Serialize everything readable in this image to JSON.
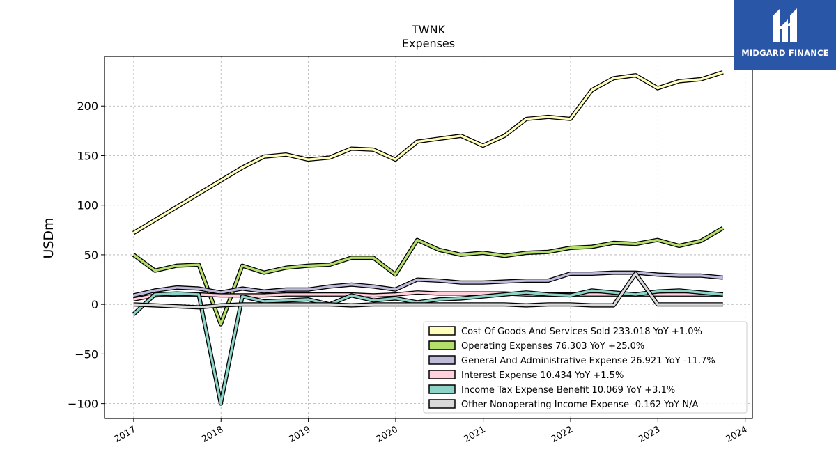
{
  "brand": {
    "name": "MIDGARD FINANCE",
    "bg_color": "#2a56a8"
  },
  "chart_data": {
    "type": "line",
    "title": "TWNK",
    "subtitle": "Expenses",
    "ylabel": "USDm",
    "xlabel": "",
    "ylim": [
      -115,
      250
    ],
    "yticks": [
      -100,
      -50,
      0,
      50,
      100,
      150,
      200
    ],
    "xticks": [
      "2017",
      "2018",
      "2019",
      "2020",
      "2021",
      "2022",
      "2023",
      "2024"
    ],
    "grid": true,
    "legend_position": "lower-right",
    "series": [
      {
        "name": "Cost Of Goods And Services Sold",
        "legend": "Cost Of Goods And Services Sold  233.018 YoY +1.0%",
        "color": "#ffffbb",
        "points": [
          [
            "2016-12-31",
            72
          ],
          [
            "2018-01-01",
            125
          ],
          [
            "2018-03-31",
            138
          ],
          [
            "2018-06-30",
            149
          ],
          [
            "2018-09-30",
            151
          ],
          [
            "2018-12-31",
            146
          ],
          [
            "2019-03-31",
            148
          ],
          [
            "2019-06-30",
            157
          ],
          [
            "2019-09-30",
            156
          ],
          [
            "2019-12-31",
            146
          ],
          [
            "2020-03-31",
            164
          ],
          [
            "2020-06-30",
            167
          ],
          [
            "2020-09-30",
            170
          ],
          [
            "2020-12-31",
            160
          ],
          [
            "2021-03-31",
            170
          ],
          [
            "2021-06-30",
            187
          ],
          [
            "2021-09-30",
            189
          ],
          [
            "2021-12-31",
            187
          ],
          [
            "2022-03-31",
            216
          ],
          [
            "2022-06-30",
            228
          ],
          [
            "2022-09-30",
            231
          ],
          [
            "2022-12-31",
            218
          ],
          [
            "2023-03-31",
            225
          ],
          [
            "2023-06-30",
            227
          ],
          [
            "2023-09-30",
            234
          ]
        ]
      },
      {
        "name": "Operating Expenses",
        "legend": "Operating Expenses  76.303 YoY +25.0%",
        "color": "#b3de69",
        "points": [
          [
            "2016-12-31",
            50
          ],
          [
            "2017-03-31",
            34
          ],
          [
            "2017-06-30",
            39
          ],
          [
            "2017-09-30",
            40
          ],
          [
            "2017-12-31",
            -20
          ],
          [
            "2018-03-31",
            39
          ],
          [
            "2018-06-30",
            32
          ],
          [
            "2018-09-30",
            37
          ],
          [
            "2018-12-31",
            39
          ],
          [
            "2019-03-31",
            40
          ],
          [
            "2019-06-30",
            47
          ],
          [
            "2019-09-30",
            47
          ],
          [
            "2019-12-31",
            30
          ],
          [
            "2020-03-31",
            65
          ],
          [
            "2020-06-30",
            55
          ],
          [
            "2020-09-30",
            50
          ],
          [
            "2020-12-31",
            52
          ],
          [
            "2021-03-31",
            49
          ],
          [
            "2021-06-30",
            52
          ],
          [
            "2021-09-30",
            53
          ],
          [
            "2021-12-31",
            57
          ],
          [
            "2022-03-31",
            58
          ],
          [
            "2022-06-30",
            62
          ],
          [
            "2022-09-30",
            61
          ],
          [
            "2022-12-31",
            65
          ],
          [
            "2023-03-31",
            59
          ],
          [
            "2023-06-30",
            64
          ],
          [
            "2023-09-30",
            77
          ]
        ]
      },
      {
        "name": "General And Administrative Expense",
        "legend": "General And Administrative Expense  26.921 YoY -11.7%",
        "color": "#bebada",
        "points": [
          [
            "2016-12-31",
            9
          ],
          [
            "2017-03-31",
            14
          ],
          [
            "2017-06-30",
            17
          ],
          [
            "2017-09-30",
            16
          ],
          [
            "2017-12-31",
            12
          ],
          [
            "2018-03-31",
            16
          ],
          [
            "2018-06-30",
            13
          ],
          [
            "2018-09-30",
            15
          ],
          [
            "2018-12-31",
            15
          ],
          [
            "2019-03-31",
            18
          ],
          [
            "2019-06-30",
            20
          ],
          [
            "2019-09-30",
            18
          ],
          [
            "2019-12-31",
            15
          ],
          [
            "2020-03-31",
            25
          ],
          [
            "2020-06-30",
            24
          ],
          [
            "2020-09-30",
            22
          ],
          [
            "2020-12-31",
            22
          ],
          [
            "2021-03-31",
            23
          ],
          [
            "2021-06-30",
            24
          ],
          [
            "2021-09-30",
            24
          ],
          [
            "2021-12-31",
            31
          ],
          [
            "2022-03-31",
            31
          ],
          [
            "2022-06-30",
            32
          ],
          [
            "2022-09-30",
            32
          ],
          [
            "2022-12-31",
            30
          ],
          [
            "2023-03-31",
            29
          ],
          [
            "2023-06-30",
            29
          ],
          [
            "2023-09-30",
            27
          ]
        ]
      },
      {
        "name": "Interest Expense",
        "legend": "Interest Expense  10.434 YoY +1.5%",
        "color": "#ffd1dc",
        "points": [
          [
            "2016-12-31",
            5
          ],
          [
            "2017-03-31",
            9
          ],
          [
            "2017-06-30",
            10
          ],
          [
            "2017-09-30",
            10
          ],
          [
            "2017-12-31",
            9
          ],
          [
            "2018-03-31",
            9
          ],
          [
            "2018-06-30",
            9
          ],
          [
            "2018-09-30",
            10
          ],
          [
            "2018-12-31",
            10
          ],
          [
            "2019-03-31",
            10
          ],
          [
            "2019-06-30",
            10
          ],
          [
            "2019-09-30",
            9
          ],
          [
            "2019-12-31",
            10
          ],
          [
            "2020-03-31",
            12
          ],
          [
            "2020-06-30",
            11
          ],
          [
            "2020-09-30",
            11
          ],
          [
            "2020-12-31",
            11
          ],
          [
            "2021-03-31",
            11
          ],
          [
            "2021-06-30",
            10
          ],
          [
            "2021-09-30",
            10
          ],
          [
            "2021-12-31",
            10
          ],
          [
            "2022-03-31",
            10
          ],
          [
            "2022-06-30",
            10
          ],
          [
            "2022-09-30",
            10
          ],
          [
            "2022-12-31",
            10
          ],
          [
            "2023-03-31",
            10
          ],
          [
            "2023-06-30",
            10
          ],
          [
            "2023-09-30",
            10
          ]
        ]
      },
      {
        "name": "Income Tax Expense Benefit",
        "legend": "Income Tax Expense Benefit  10.069 YoY +3.1%",
        "color": "#8dd3c7",
        "points": [
          [
            "2016-12-31",
            -10
          ],
          [
            "2017-03-31",
            10
          ],
          [
            "2017-06-30",
            11
          ],
          [
            "2017-09-30",
            10
          ],
          [
            "2017-12-31",
            -100
          ],
          [
            "2018-03-31",
            8
          ],
          [
            "2018-06-30",
            3
          ],
          [
            "2018-09-30",
            4
          ],
          [
            "2018-12-31",
            5
          ],
          [
            "2019-03-31",
            0
          ],
          [
            "2019-06-30",
            9
          ],
          [
            "2019-09-30",
            4
          ],
          [
            "2019-12-31",
            6
          ],
          [
            "2020-03-31",
            2
          ],
          [
            "2020-06-30",
            5
          ],
          [
            "2020-09-30",
            6
          ],
          [
            "2020-12-31",
            8
          ],
          [
            "2021-03-31",
            10
          ],
          [
            "2021-06-30",
            12
          ],
          [
            "2021-09-30",
            10
          ],
          [
            "2021-12-31",
            9
          ],
          [
            "2022-03-31",
            14
          ],
          [
            "2022-06-30",
            12
          ],
          [
            "2022-09-30",
            10
          ],
          [
            "2022-12-31",
            13
          ],
          [
            "2023-03-31",
            14
          ],
          [
            "2023-06-30",
            12
          ],
          [
            "2023-09-30",
            10
          ]
        ]
      },
      {
        "name": "Other Nonoperating Income Expense",
        "legend": "Other Nonoperating Income Expense  -0.162 YoY N/A",
        "color": "#d9d9d9",
        "points": [
          [
            "2016-12-31",
            0
          ],
          [
            "2017-03-31",
            -1
          ],
          [
            "2017-06-30",
            -2
          ],
          [
            "2017-09-30",
            -3
          ],
          [
            "2017-12-31",
            -1
          ],
          [
            "2018-03-31",
            0
          ],
          [
            "2018-06-30",
            0
          ],
          [
            "2018-09-30",
            0
          ],
          [
            "2018-12-31",
            0
          ],
          [
            "2019-03-31",
            0
          ],
          [
            "2019-06-30",
            -1
          ],
          [
            "2019-09-30",
            0
          ],
          [
            "2019-12-31",
            0
          ],
          [
            "2020-03-31",
            0
          ],
          [
            "2020-06-30",
            0
          ],
          [
            "2020-09-30",
            0
          ],
          [
            "2020-12-31",
            0
          ],
          [
            "2021-03-31",
            0
          ],
          [
            "2021-06-30",
            -1
          ],
          [
            "2021-09-30",
            0
          ],
          [
            "2021-12-31",
            0
          ],
          [
            "2022-03-31",
            -1
          ],
          [
            "2022-06-30",
            -1
          ],
          [
            "2022-09-30",
            31
          ],
          [
            "2022-12-31",
            0
          ],
          [
            "2023-03-31",
            0
          ],
          [
            "2023-06-30",
            0
          ],
          [
            "2023-09-30",
            0
          ]
        ]
      }
    ]
  }
}
